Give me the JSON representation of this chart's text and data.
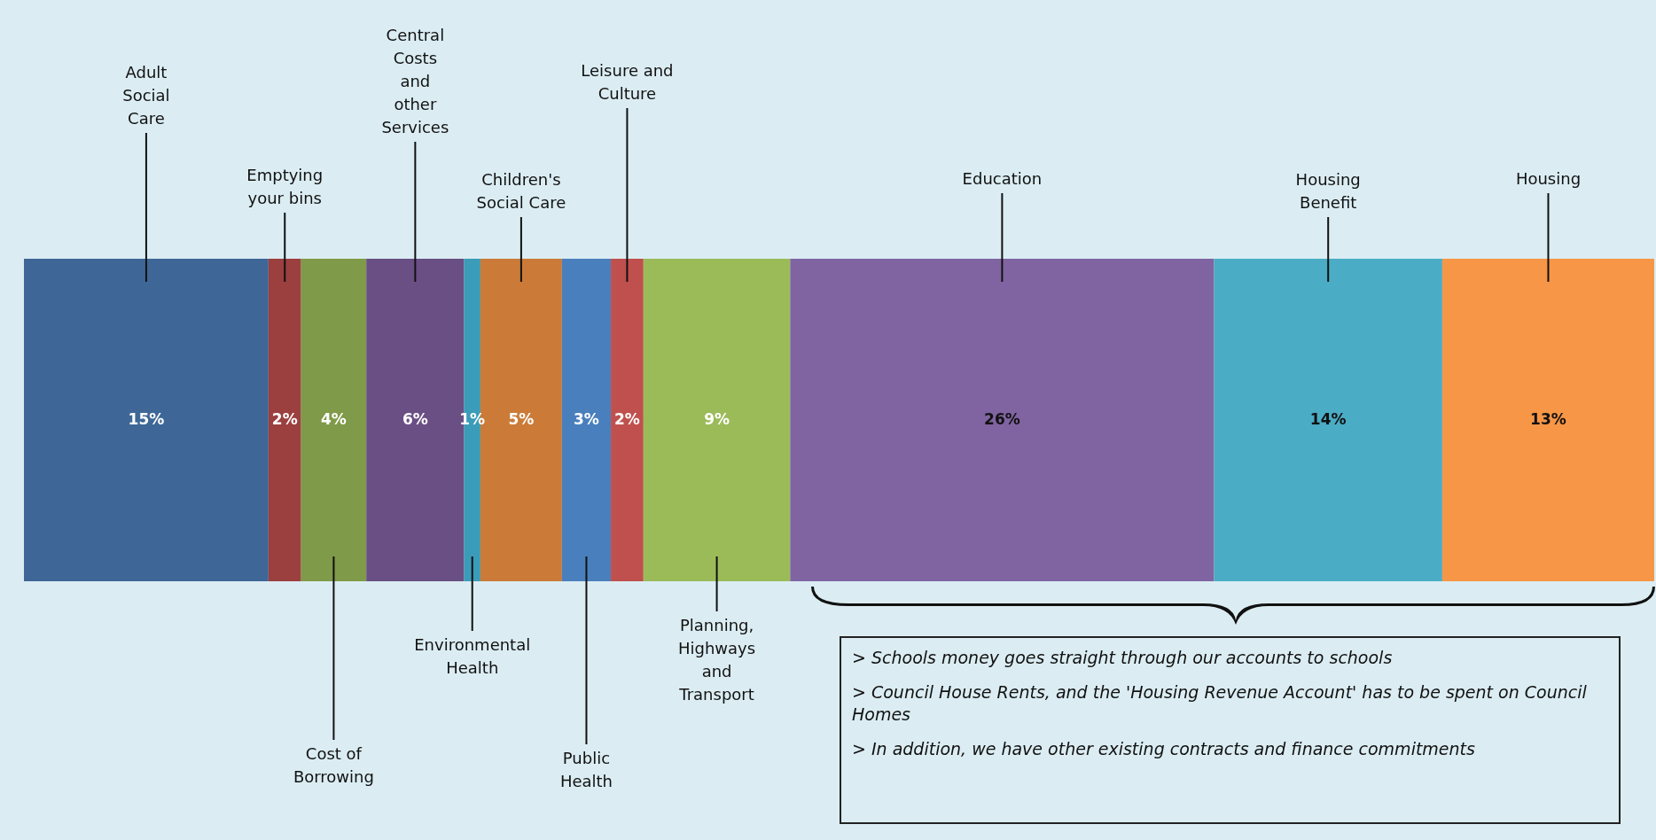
{
  "chart_data": {
    "type": "bar",
    "stacked": true,
    "orientation": "horizontal",
    "categories": [
      null
    ],
    "series": [
      {
        "name": "Adult Social Care",
        "color": "#3e6797",
        "values": [
          15
        ],
        "value_labels": [
          "15%"
        ]
      },
      {
        "name": "Emptying your bins",
        "color": "#9b3f3f",
        "values": [
          2
        ],
        "value_labels": [
          "2%"
        ]
      },
      {
        "name": "Cost of Borrowing",
        "color": "#7f9a48",
        "values": [
          4
        ],
        "value_labels": [
          "4%"
        ]
      },
      {
        "name": "Central Costs and other Services",
        "color": "#6a4f84",
        "values": [
          6
        ],
        "value_labels": [
          "6%"
        ]
      },
      {
        "name": "Environmental Health",
        "color": "#3a9cb8",
        "values": [
          1
        ],
        "value_labels": [
          "1%"
        ]
      },
      {
        "name": "Children's Social Care",
        "color": "#cb7b37",
        "values": [
          5
        ],
        "value_labels": [
          "5%"
        ]
      },
      {
        "name": "Public Health",
        "color": "#4a7fbd",
        "values": [
          3
        ],
        "value_labels": [
          "3%"
        ]
      },
      {
        "name": "Leisure and Culture",
        "color": "#c0504d",
        "values": [
          2
        ],
        "value_labels": [
          "2%"
        ]
      },
      {
        "name": "Planning, Highways and Transport",
        "color": "#9bbb59",
        "values": [
          9
        ],
        "value_labels": [
          "9%"
        ]
      },
      {
        "name": "Education",
        "color": "#8064a2",
        "values": [
          26
        ],
        "value_labels": [
          "26%"
        ]
      },
      {
        "name": "Housing Benefit",
        "color": "#4bacc6",
        "values": [
          14
        ],
        "value_labels": [
          "14%"
        ]
      },
      {
        "name": "Housing",
        "color": "#f79646",
        "values": [
          13
        ],
        "value_labels": [
          "13%"
        ]
      }
    ],
    "annotations": [
      "> Schools money goes straight through our accounts to schools",
      "> Council House Rents, and the 'Housing Revenue Account' has to be spent on Council Homes",
      "> In addition, we have other existing contracts and finance commitments"
    ]
  }
}
